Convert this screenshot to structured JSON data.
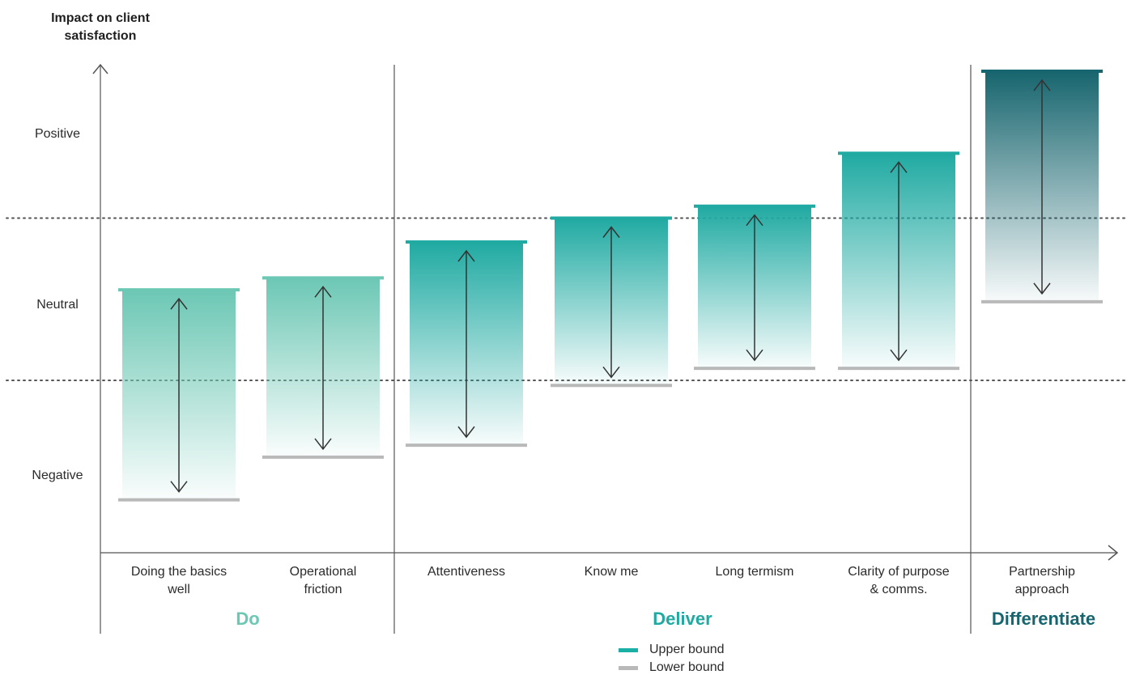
{
  "chart_data": {
    "type": "range_bar",
    "ylabel": "Impact on client satisfaction",
    "y_ticks": [
      {
        "label": "Positive",
        "value": 2
      },
      {
        "label": "Neutral",
        "value": 1
      },
      {
        "label": "Negative",
        "value": 0
      }
    ],
    "reference_lines": [
      0.55,
      1.5
    ],
    "categories": [
      {
        "label": [
          "Doing the basics",
          "well"
        ],
        "group": "Do",
        "upper": 1.08,
        "lower": -0.15
      },
      {
        "label": [
          "Operational",
          "friction"
        ],
        "group": "Do",
        "upper": 1.15,
        "lower": 0.1
      },
      {
        "label": [
          "Attentiveness"
        ],
        "group": "Deliver",
        "upper": 1.36,
        "lower": 0.17
      },
      {
        "label": [
          "Know me"
        ],
        "group": "Deliver",
        "upper": 1.5,
        "lower": 0.52
      },
      {
        "label": [
          "Long termism"
        ],
        "group": "Deliver",
        "upper": 1.57,
        "lower": 0.62
      },
      {
        "label": [
          "Clarity of purpose",
          "& comms."
        ],
        "group": "Deliver",
        "upper": 1.88,
        "lower": 0.62
      },
      {
        "label": [
          "Partnership",
          "approach"
        ],
        "group": "Differentiate",
        "upper": 2.36,
        "lower": 1.01
      }
    ],
    "groups": [
      {
        "name": "Do",
        "color": "#6cc7b4"
      },
      {
        "name": "Deliver",
        "color": "#20aaa2"
      },
      {
        "name": "Differentiate",
        "color": "#17656e"
      }
    ],
    "legend": [
      {
        "label": "Upper bound",
        "color": "#1ab0a6"
      },
      {
        "label": "Lower bound",
        "color": "#b9b9b9"
      }
    ],
    "legend_placement": "bottom-center"
  }
}
